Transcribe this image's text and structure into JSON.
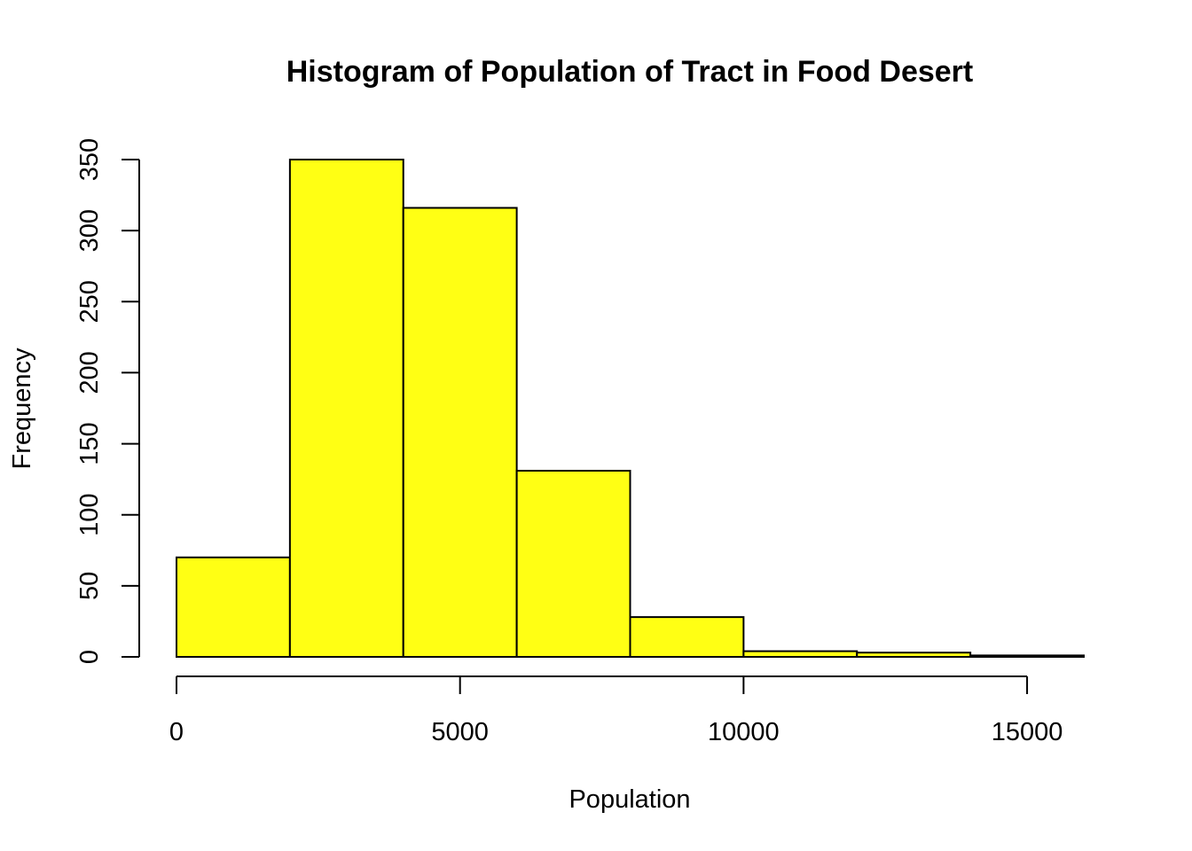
{
  "chart_data": {
    "type": "bar",
    "subtype": "histogram",
    "title": "Histogram of Population of Tract in Food Desert",
    "xlabel": "Population",
    "ylabel": "Frequency",
    "bar_color": "#ffff14",
    "bins": [
      {
        "x0": 0,
        "x1": 2000,
        "count": 70
      },
      {
        "x0": 2000,
        "x1": 4000,
        "count": 350
      },
      {
        "x0": 4000,
        "x1": 6000,
        "count": 316
      },
      {
        "x0": 6000,
        "x1": 8000,
        "count": 131
      },
      {
        "x0": 8000,
        "x1": 10000,
        "count": 28
      },
      {
        "x0": 10000,
        "x1": 12000,
        "count": 4
      },
      {
        "x0": 12000,
        "x1": 14000,
        "count": 3
      },
      {
        "x0": 14000,
        "x1": 16000,
        "count": 1
      }
    ],
    "xlim": [
      0,
      16000
    ],
    "ylim": [
      0,
      350
    ],
    "x_ticks": [
      0,
      5000,
      10000,
      15000
    ],
    "x_tick_labels": [
      "0",
      "5000",
      "10000",
      "15000"
    ],
    "y_ticks": [
      0,
      50,
      100,
      150,
      200,
      250,
      300,
      350
    ],
    "y_tick_labels": [
      "0",
      "50",
      "100",
      "150",
      "200",
      "250",
      "300",
      "350"
    ],
    "grid": false,
    "legend": "none"
  }
}
